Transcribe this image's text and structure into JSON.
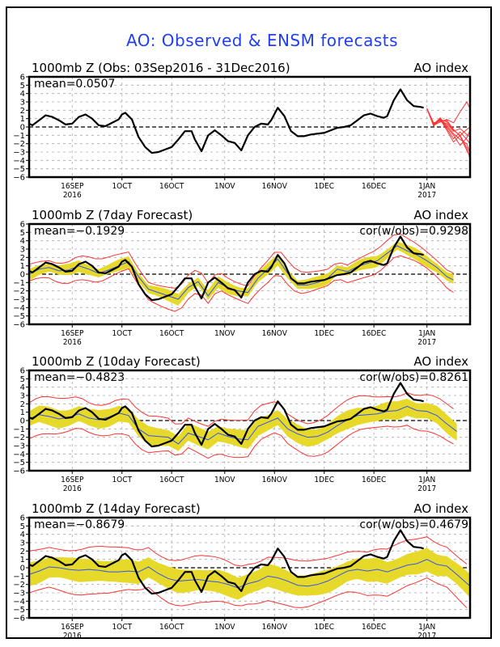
{
  "chart_data": [
    {
      "type": "line",
      "title": "AO: Observed & ENSM forecasts",
      "panel_title": "1000mb Z (Obs: 03Sep2016 - 31Dec2016)",
      "right_label": "AO index",
      "stat_left": "mean=0.0507",
      "stat_right": "",
      "ylim": [
        -6,
        6
      ],
      "yticks": [
        -6,
        -5,
        -4,
        -3,
        -2,
        -1,
        0,
        1,
        2,
        3,
        4,
        5,
        6
      ],
      "xlim_days": [
        0,
        133
      ],
      "x_origin": "03Sep2016",
      "xticks": [
        {
          "day": 13,
          "label": "16SEP",
          "sub": "2016"
        },
        {
          "day": 28,
          "label": "1OCT",
          "sub": ""
        },
        {
          "day": 43,
          "label": "16OCT",
          "sub": ""
        },
        {
          "day": 59,
          "label": "1NOV",
          "sub": ""
        },
        {
          "day": 74,
          "label": "16NOV",
          "sub": ""
        },
        {
          "day": 89,
          "label": "1DEC",
          "sub": ""
        },
        {
          "day": 104,
          "label": "16DEC",
          "sub": ""
        },
        {
          "day": 120,
          "label": "1JAN",
          "sub": "2017"
        }
      ],
      "grid": true,
      "series": [
        {
          "name": "observed",
          "color": "#000000",
          "x": [
            0,
            1,
            3,
            5,
            7,
            9,
            11,
            13,
            15,
            17,
            19,
            21,
            23,
            25,
            27,
            28,
            29,
            31,
            33,
            35,
            37,
            39,
            41,
            43,
            45,
            47,
            49,
            50,
            52,
            54,
            56,
            58,
            60,
            62,
            64,
            66,
            68,
            70,
            72,
            73,
            75,
            77,
            79,
            81,
            83,
            85,
            87,
            89,
            91,
            93,
            95,
            97,
            99,
            101,
            103,
            105,
            107,
            108,
            110,
            112,
            114,
            116,
            118,
            119
          ],
          "y": [
            0.4,
            0.2,
            0.8,
            1.4,
            1.2,
            0.8,
            0.3,
            0.4,
            1.2,
            1.5,
            1.0,
            0.2,
            0.1,
            0.5,
            0.9,
            1.5,
            1.7,
            0.9,
            -1.2,
            -2.4,
            -3.1,
            -3.0,
            -2.7,
            -2.4,
            -1.5,
            -0.5,
            -0.5,
            -1.5,
            -2.9,
            -1.0,
            -0.4,
            -1.0,
            -1.7,
            -1.9,
            -2.8,
            -1.0,
            0.0,
            0.4,
            0.3,
            0.8,
            2.3,
            1.3,
            -0.5,
            -1.1,
            -1.1,
            -0.9,
            -0.8,
            -0.7,
            -0.4,
            -0.1,
            0.0,
            0.2,
            0.8,
            1.4,
            1.6,
            1.3,
            1.1,
            1.3,
            3.2,
            4.5,
            3.2,
            2.5,
            2.4,
            2.3
          ]
        },
        {
          "name": "ensemble-members",
          "color": "#ff3333",
          "members": [
            {
              "x": [
                120,
                122,
                124,
                126,
                128,
                130,
                132,
                133
              ],
              "y": [
                2.2,
                0.3,
                0.6,
                0.9,
                0.5,
                1.8,
                3.0,
                2.2
              ]
            },
            {
              "x": [
                120,
                122,
                124,
                126,
                128,
                130,
                132,
                133
              ],
              "y": [
                2.2,
                0.2,
                0.9,
                0.6,
                -0.4,
                -1.0,
                -2.5,
                -3.8
              ]
            },
            {
              "x": [
                120,
                122,
                124,
                126,
                128,
                130,
                132,
                133
              ],
              "y": [
                2.2,
                0.4,
                0.8,
                0.2,
                -0.8,
                -1.5,
                -2.0,
                -3.2
              ]
            },
            {
              "x": [
                120,
                122,
                124,
                126,
                128,
                130,
                132,
                133
              ],
              "y": [
                2.2,
                0.1,
                1.0,
                -0.2,
                -1.4,
                -0.6,
                -1.5,
                -2.0
              ]
            },
            {
              "x": [
                120,
                122,
                124,
                126,
                128,
                130,
                132,
                133
              ],
              "y": [
                2.2,
                0.5,
                0.7,
                0.4,
                -0.5,
                -0.2,
                -0.9,
                -1.2
              ]
            },
            {
              "x": [
                120,
                122,
                124,
                126,
                128,
                130,
                132,
                133
              ],
              "y": [
                2.2,
                0.3,
                1.1,
                0.0,
                -1.0,
                -2.2,
                -1.3,
                -0.4
              ]
            },
            {
              "x": [
                120,
                122,
                124,
                126,
                128,
                130,
                132,
                133
              ],
              "y": [
                2.2,
                0.2,
                0.6,
                0.8,
                -0.3,
                -1.1,
                -2.8,
                -3.5
              ]
            },
            {
              "x": [
                120,
                122,
                124,
                126,
                128,
                130,
                132,
                133
              ],
              "y": [
                2.2,
                0.4,
                0.9,
                -0.4,
                -1.8,
                -1.0,
                -0.3,
                0.0
              ]
            }
          ]
        }
      ]
    },
    {
      "type": "area",
      "panel_title": "1000mb Z (7day Forecast)",
      "right_label": "AO index",
      "stat_left": "mean=-0.1929",
      "stat_right": "cor(w/obs)=0.9298",
      "ylim": [
        -6,
        6
      ],
      "series": [
        {
          "name": "observed",
          "color": "#000000",
          "ref": "panel1"
        },
        {
          "name": "ensemble-mean",
          "color": "#3355ee",
          "x": [
            0,
            3,
            6,
            9,
            12,
            15,
            18,
            21,
            24,
            27,
            30,
            33,
            36,
            39,
            42,
            45,
            48,
            51,
            54,
            57,
            60,
            63,
            66,
            69,
            72,
            75,
            78,
            81,
            84,
            87,
            90,
            93,
            96,
            99,
            102,
            105,
            108,
            111,
            114,
            117,
            120,
            123,
            126,
            128
          ],
          "y": [
            0.0,
            0.6,
            0.8,
            0.4,
            0.5,
            1.0,
            0.6,
            0.1,
            0.5,
            1.0,
            1.5,
            -0.3,
            -1.8,
            -2.2,
            -2.6,
            -3.0,
            -1.6,
            -0.9,
            -2.6,
            -1.0,
            -1.6,
            -2.0,
            -2.2,
            -0.5,
            0.6,
            1.8,
            0.1,
            -1.3,
            -1.3,
            -1.0,
            -0.5,
            0.6,
            0.3,
            0.9,
            1.3,
            1.6,
            2.5,
            3.4,
            2.8,
            2.3,
            1.6,
            0.8,
            -0.3,
            -0.7
          ]
        },
        {
          "name": "spread",
          "color": "#e6d92a",
          "half_width": 0.6
        },
        {
          "name": "min-max",
          "color": "#ff3333",
          "half_width": 1.2
        }
      ]
    },
    {
      "type": "area",
      "panel_title": "1000mb Z (10day Forecast)",
      "right_label": "AO index",
      "stat_left": "mean=-0.4823",
      "stat_right": "cor(w/obs)=0.8261",
      "ylim": [
        -6,
        6
      ],
      "series": [
        {
          "name": "observed",
          "color": "#000000",
          "ref": "panel1"
        },
        {
          "name": "ensemble-mean",
          "color": "#3355ee",
          "x": [
            0,
            3,
            6,
            9,
            12,
            15,
            18,
            21,
            24,
            27,
            30,
            33,
            36,
            39,
            42,
            45,
            48,
            51,
            54,
            57,
            60,
            63,
            66,
            69,
            72,
            75,
            78,
            81,
            84,
            87,
            90,
            93,
            96,
            99,
            102,
            105,
            108,
            111,
            114,
            117,
            120,
            123,
            126,
            129
          ],
          "y": [
            0.2,
            0.7,
            0.5,
            0.2,
            0.4,
            0.8,
            0.3,
            0.1,
            0.4,
            0.9,
            0.6,
            -1.0,
            -1.8,
            -1.9,
            -2.0,
            -2.8,
            -1.5,
            -1.9,
            -2.3,
            -1.5,
            -1.9,
            -2.2,
            -2.3,
            -0.7,
            -0.2,
            0.3,
            -1.0,
            -1.6,
            -2.0,
            -1.9,
            -1.4,
            -0.6,
            0.1,
            0.6,
            0.7,
            0.8,
            1.1,
            1.2,
            1.7,
            1.2,
            1.1,
            0.6,
            -0.4,
            -1.3
          ]
        },
        {
          "name": "spread",
          "color": "#e6d92a",
          "half_width": 1.0
        },
        {
          "name": "min-max",
          "color": "#ff3333",
          "half_width": 2.0
        }
      ]
    },
    {
      "type": "area",
      "panel_title": "1000mb Z (14day Forecast)",
      "right_label": "AO index",
      "stat_left": "mean=-0.8679",
      "stat_right": "cor(w/obs)=0.4679",
      "ylim": [
        -6,
        6
      ],
      "series": [
        {
          "name": "observed",
          "color": "#000000",
          "ref": "panel1"
        },
        {
          "name": "ensemble-mean",
          "color": "#3355ee",
          "x": [
            0,
            3,
            6,
            9,
            12,
            15,
            18,
            21,
            24,
            27,
            30,
            33,
            36,
            39,
            42,
            45,
            48,
            51,
            54,
            57,
            60,
            63,
            66,
            69,
            72,
            75,
            78,
            81,
            84,
            87,
            90,
            93,
            96,
            99,
            102,
            105,
            108,
            111,
            114,
            117,
            120,
            123,
            126,
            129,
            133
          ],
          "y": [
            -0.8,
            -0.4,
            0.1,
            0.0,
            -0.2,
            -0.3,
            -0.2,
            -0.3,
            -0.5,
            -0.5,
            -0.4,
            -0.5,
            0.1,
            -0.7,
            -1.3,
            -1.6,
            -1.5,
            -1.4,
            -1.6,
            -1.7,
            -2.0,
            -2.4,
            -1.9,
            -1.6,
            -1.0,
            -1.2,
            -1.6,
            -2.1,
            -2.2,
            -2.0,
            -1.6,
            -1.0,
            -0.4,
            -0.2,
            -0.4,
            -0.2,
            -0.5,
            -0.1,
            0.3,
            0.5,
            1.0,
            0.4,
            0.2,
            -0.8,
            -2.2
          ]
        },
        {
          "name": "spread",
          "color": "#e6d92a",
          "half_width": 1.3
        },
        {
          "name": "min-max",
          "color": "#ff3333",
          "half_width": 2.6
        }
      ]
    }
  ]
}
